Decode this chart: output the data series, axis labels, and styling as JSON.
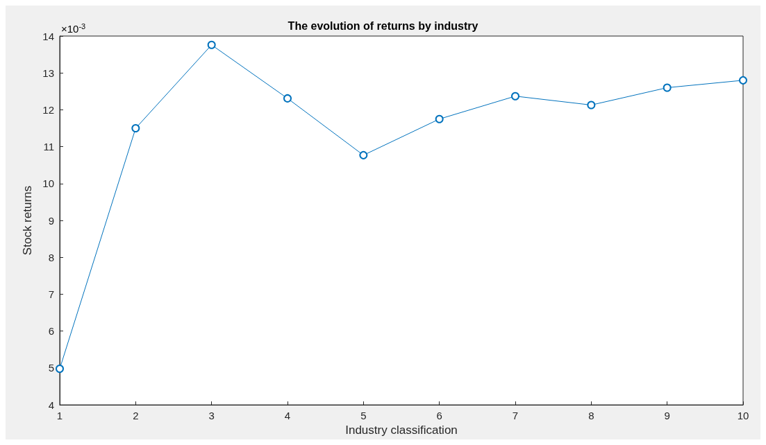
{
  "chart_data": {
    "type": "line",
    "title": "The evolution of returns by industry",
    "xlabel": "Industry classification",
    "ylabel": "Stock returns",
    "annotations": [
      "×10$^{-3}$"
    ],
    "x": [
      1,
      2,
      3,
      4,
      5,
      6,
      7,
      8,
      9,
      10
    ],
    "series": [
      {
        "color": "#0072bd",
        "values": [
          4.98,
          11.5,
          13.76,
          12.31,
          10.77,
          11.75,
          12.37,
          12.13,
          12.6,
          12.8
        ]
      }
    ],
    "xlim": [
      1,
      10
    ],
    "xticks": [
      1,
      2,
      3,
      4,
      5,
      6,
      7,
      8,
      9,
      10
    ],
    "ylim": [
      4,
      14
    ],
    "yticks": [
      4,
      5,
      6,
      7,
      8,
      9,
      10,
      11,
      12,
      13,
      14
    ],
    "marker": "circle",
    "line_style": "solid"
  }
}
